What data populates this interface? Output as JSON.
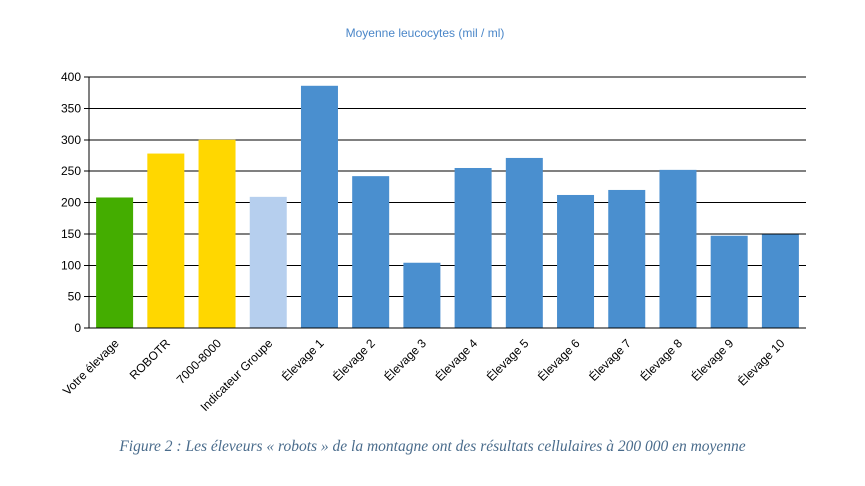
{
  "chart_data": {
    "type": "bar",
    "title": "Moyenne leucocytes (mil / ml)",
    "categories": [
      "Votre élevage",
      "ROBOTR",
      "7000-8000",
      "Indicateur Groupe",
      "Élevage 1",
      "Élevage 2",
      "Élevage 3",
      "Élevage 4",
      "Élevage 5",
      "Élevage 6",
      "Élevage 7",
      "Élevage 8",
      "Élevage 9",
      "Élevage 10"
    ],
    "values": [
      208,
      278,
      300,
      209,
      386,
      242,
      104,
      255,
      271,
      212,
      220,
      252,
      147,
      149
    ],
    "colors": [
      "#44ad00",
      "#ffd700",
      "#ffd700",
      "#b6cfee",
      "#4a8fcf",
      "#4a8fcf",
      "#4a8fcf",
      "#4a8fcf",
      "#4a8fcf",
      "#4a8fcf",
      "#4a8fcf",
      "#4a8fcf",
      "#4a8fcf",
      "#4a8fcf"
    ],
    "yticks": [
      0,
      50,
      100,
      150,
      200,
      250,
      300,
      350,
      400
    ],
    "ylim": [
      0,
      400
    ],
    "grid": true,
    "legend": "none"
  },
  "caption": "Figure 2 : Les éleveurs « robots » de la montagne ont des résultats cellulaires à 200 000 en moyenne"
}
